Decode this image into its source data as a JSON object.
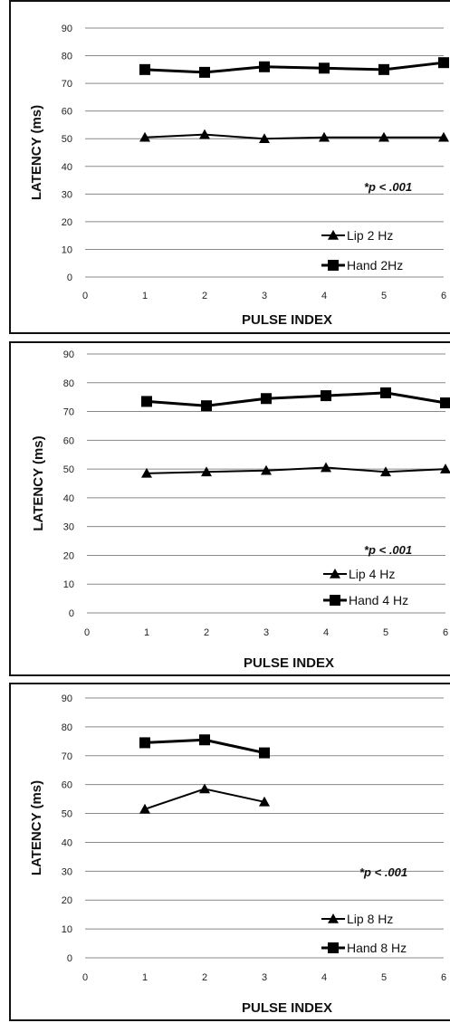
{
  "chart_data": [
    {
      "type": "line",
      "title": "",
      "xlabel": "PULSE INDEX",
      "ylabel": "LATENCY (ms)",
      "xlim": [
        0,
        6
      ],
      "ylim": [
        0,
        90
      ],
      "x_ticks": [
        0,
        1,
        2,
        3,
        4,
        5,
        6
      ],
      "y_ticks": [
        0,
        10,
        20,
        30,
        40,
        50,
        60,
        70,
        80,
        90
      ],
      "grid": "horizontal",
      "legend_position": "bottom-right",
      "annotation": "*p < .001",
      "series": [
        {
          "name": "Lip 2 Hz",
          "marker": "triangle",
          "x": [
            1,
            2,
            3,
            4,
            5,
            6
          ],
          "values": [
            50.5,
            51.5,
            50,
            50.5,
            50.5,
            50.5
          ]
        },
        {
          "name": "Hand 2Hz",
          "marker": "square",
          "x": [
            1,
            2,
            3,
            4,
            5,
            6
          ],
          "values": [
            75,
            74,
            76,
            75.5,
            75,
            77.5
          ]
        }
      ]
    },
    {
      "type": "line",
      "title": "",
      "xlabel": "PULSE INDEX",
      "ylabel": "LATENCY (ms)",
      "xlim": [
        0,
        6
      ],
      "ylim": [
        0,
        90
      ],
      "x_ticks": [
        0,
        1,
        2,
        3,
        4,
        5,
        6
      ],
      "y_ticks": [
        0,
        10,
        20,
        30,
        40,
        50,
        60,
        70,
        80,
        90
      ],
      "grid": "horizontal",
      "legend_position": "bottom-right",
      "annotation": "*p < .001",
      "series": [
        {
          "name": "Lip 4 Hz",
          "marker": "triangle",
          "x": [
            1,
            2,
            3,
            4,
            5,
            6
          ],
          "values": [
            48.5,
            49,
            49.5,
            50.5,
            49,
            50
          ]
        },
        {
          "name": "Hand 4 Hz",
          "marker": "square",
          "x": [
            1,
            2,
            3,
            4,
            5,
            6
          ],
          "values": [
            73.5,
            72,
            74.5,
            75.5,
            76.5,
            73
          ]
        }
      ]
    },
    {
      "type": "line",
      "title": "",
      "xlabel": "PULSE INDEX",
      "ylabel": "LATENCY (ms)",
      "xlim": [
        0,
        6
      ],
      "ylim": [
        0,
        90
      ],
      "x_ticks": [
        0,
        1,
        2,
        3,
        4,
        5,
        6
      ],
      "y_ticks": [
        0,
        10,
        20,
        30,
        40,
        50,
        60,
        70,
        80,
        90
      ],
      "grid": "horizontal",
      "legend_position": "bottom-right",
      "annotation": "*p < .001",
      "series": [
        {
          "name": "Lip 8 Hz",
          "marker": "triangle",
          "x": [
            1,
            2,
            3
          ],
          "values": [
            51.5,
            58.5,
            54
          ]
        },
        {
          "name": "Hand 8 Hz",
          "marker": "square",
          "x": [
            1,
            2,
            3
          ],
          "values": [
            74.5,
            75.5,
            71
          ]
        }
      ]
    }
  ]
}
